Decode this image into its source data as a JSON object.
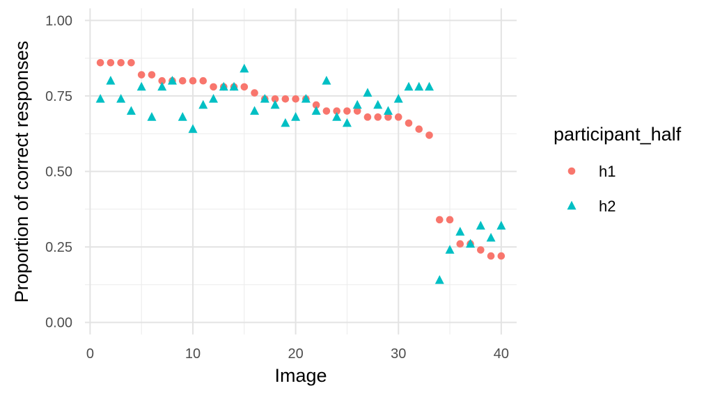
{
  "chart_data": {
    "type": "scatter",
    "title": "",
    "xlabel": "Image",
    "ylabel": "Proportion of correct responses",
    "xlim": [
      -0.5,
      41.5
    ],
    "ylim": [
      -0.04,
      1.04
    ],
    "x_ticks": [
      0,
      10,
      20,
      30,
      40
    ],
    "x_tick_labels": [
      "0",
      "10",
      "20",
      "30",
      "40"
    ],
    "y_ticks": [
      0,
      0.25,
      0.5,
      0.75,
      1.0
    ],
    "y_tick_labels": [
      "0.00",
      "0.25",
      "0.50",
      "0.75",
      "1.00"
    ],
    "grid": true,
    "legend": {
      "title": "participant_half",
      "position": "right"
    },
    "series": [
      {
        "name": "h1",
        "color": "#F8766D",
        "shape": "circle",
        "x": [
          1,
          2,
          3,
          4,
          5,
          6,
          7,
          8,
          9,
          10,
          11,
          12,
          13,
          14,
          15,
          16,
          17,
          18,
          19,
          20,
          21,
          22,
          23,
          24,
          25,
          26,
          27,
          28,
          29,
          30,
          31,
          32,
          33,
          34,
          35,
          36,
          37,
          38,
          39,
          40
        ],
        "y": [
          0.86,
          0.86,
          0.86,
          0.86,
          0.82,
          0.82,
          0.8,
          0.8,
          0.8,
          0.8,
          0.8,
          0.78,
          0.78,
          0.78,
          0.78,
          0.76,
          0.74,
          0.74,
          0.74,
          0.74,
          0.74,
          0.72,
          0.7,
          0.7,
          0.7,
          0.7,
          0.68,
          0.68,
          0.68,
          0.68,
          0.66,
          0.64,
          0.62,
          0.34,
          0.34,
          0.26,
          0.26,
          0.24,
          0.22,
          0.22
        ]
      },
      {
        "name": "h2",
        "color": "#00BFC4",
        "shape": "triangle",
        "x": [
          1,
          2,
          3,
          4,
          5,
          6,
          7,
          8,
          9,
          10,
          11,
          12,
          13,
          14,
          15,
          16,
          17,
          18,
          19,
          20,
          21,
          22,
          23,
          24,
          25,
          26,
          27,
          28,
          29,
          30,
          31,
          32,
          33,
          34,
          35,
          36,
          37,
          38,
          39,
          40
        ],
        "y": [
          0.74,
          0.8,
          0.74,
          0.7,
          0.78,
          0.68,
          0.78,
          0.8,
          0.68,
          0.64,
          0.72,
          0.74,
          0.78,
          0.78,
          0.84,
          0.7,
          0.74,
          0.72,
          0.66,
          0.68,
          0.74,
          0.7,
          0.8,
          0.68,
          0.66,
          0.72,
          0.76,
          0.72,
          0.7,
          0.74,
          0.78,
          0.78,
          0.78,
          0.14,
          0.24,
          0.3,
          0.26,
          0.32,
          0.28,
          0.32
        ]
      }
    ]
  }
}
